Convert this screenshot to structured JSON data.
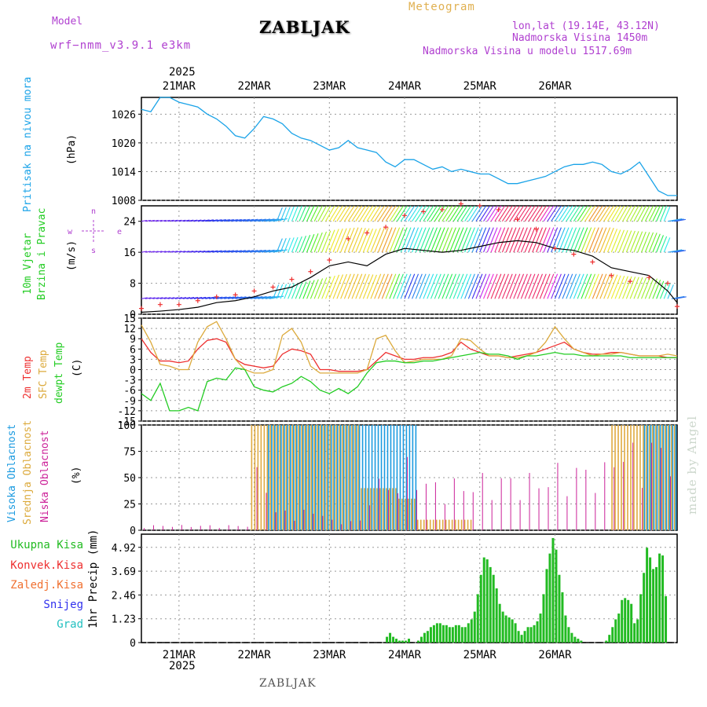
{
  "header": {
    "model_label": "Model",
    "model_name": "wrf−nmm_v3.9.1 e3km",
    "station": "ZABLJAK",
    "product": "Meteogram",
    "coords": "lon,lat (19.14E, 43.12N)",
    "elevation": "Nadmorska Visina 1450m",
    "model_elevation": "Nadmorska Visina u modelu 1517.69m",
    "year": "2025",
    "footer_station": "ZABLJAK",
    "watermark": "made by Angel"
  },
  "colors": {
    "pressure": "#1aa3e8",
    "temp": "#ee3030",
    "sfc_temp": "#dcaa3c",
    "dew": "#22cc22",
    "high_cloud": "#1a9ae0",
    "mid_cloud": "#e0aa40",
    "low_cloud": "#cc2299",
    "precip": "#22bb22",
    "wind_axis": "#b040d0"
  },
  "panel_labels": {
    "pressure": [
      "Pritisak na nivou mora",
      "(hPa)"
    ],
    "wind": [
      "10m Vjetar",
      "Brzina i Pravac",
      "(m/s)"
    ],
    "temp": [
      "2m Temp",
      "SFC Temp",
      "dewpt Temp",
      "(C)"
    ],
    "cloud": [
      "Visoka Oblacnost",
      "Srednja Oblacnost",
      "Niska Oblacnost",
      "(%)"
    ],
    "precip_legend": [
      "Ukupna Kisa",
      "Konvek.Kisa",
      "Zaledj.Kisa",
      "Snijeg",
      "Grad"
    ],
    "precip_axis": "1hr Precip (mm)",
    "compass": {
      "w": "w",
      "e": "e",
      "n": "n",
      "s": "s"
    }
  },
  "chart_data": [
    {
      "type": "line",
      "title": "Pritisak na nivou mora",
      "ylabel": "(hPa)",
      "x": [
        0,
        3,
        6,
        9,
        12,
        15,
        18,
        21,
        24,
        27,
        30,
        33,
        36,
        39,
        42,
        45,
        48,
        51,
        54,
        57,
        60,
        63,
        66,
        69,
        72,
        75,
        78,
        81,
        84,
        87,
        90,
        93,
        96,
        99,
        102,
        105,
        108,
        111,
        114,
        117,
        120,
        123,
        126,
        129,
        132,
        135,
        138,
        141,
        144,
        147,
        150,
        153,
        156,
        159,
        162,
        165,
        168,
        171
      ],
      "values": [
        1027,
        1026.5,
        1029.5,
        1029.5,
        1028.5,
        1028,
        1027.5,
        1026,
        1025,
        1023.5,
        1021.5,
        1021,
        1023,
        1025.5,
        1025,
        1024,
        1022,
        1021,
        1020.5,
        1019.5,
        1018.5,
        1019,
        1020.5,
        1019,
        1018.5,
        1018,
        1016,
        1015,
        1016.5,
        1016.5,
        1015.5,
        1014.5,
        1015,
        1014,
        1014.5,
        1014,
        1013.5,
        1013.5,
        1012.5,
        1011.5,
        1011.5,
        1012,
        1012.5,
        1013,
        1014,
        1015,
        1015.5,
        1015.5,
        1016,
        1015.5,
        1014,
        1013.5,
        1014.5,
        1016,
        1013,
        1010,
        1009,
        1009
      ],
      "ylim": [
        1008,
        1029.5
      ],
      "yticks": [
        "1008",
        "1014",
        "1020",
        "1026"
      ]
    },
    {
      "type": "line",
      "title": "10m Vjetar Brzina i Pravac",
      "ylabel": "(m/s)",
      "x": [
        0,
        6,
        12,
        18,
        24,
        30,
        36,
        42,
        48,
        54,
        60,
        66,
        72,
        78,
        84,
        90,
        96,
        102,
        108,
        114,
        120,
        126,
        132,
        138,
        144,
        150,
        156,
        162,
        168,
        171
      ],
      "speed": [
        0.5,
        0.8,
        1.2,
        1.8,
        3,
        3.5,
        4.5,
        6,
        7,
        9.5,
        12.5,
        13.5,
        12.5,
        15.5,
        17,
        16.5,
        16,
        16.5,
        17.5,
        18.5,
        19,
        18.5,
        17,
        16.5,
        15,
        12,
        11,
        10,
        6,
        3
      ],
      "gust": [
        1.5,
        2.5,
        2.5,
        3.5,
        4.5,
        5,
        6,
        7,
        9,
        11,
        14,
        19.5,
        21,
        22.5,
        25.5,
        26.5,
        27,
        28.5,
        28,
        27,
        24.5,
        22,
        17,
        15.5,
        13.5,
        10,
        8.5,
        9.5,
        8,
        2
      ],
      "rows": [
        24,
        16,
        4
      ],
      "ylim": [
        0,
        28
      ],
      "yticks": [
        "0",
        "8",
        "16",
        "24"
      ]
    },
    {
      "type": "line",
      "title": "2m Temp / SFC Temp / dewpt Temp",
      "ylabel": "(C)",
      "x": [
        0,
        3,
        6,
        9,
        12,
        15,
        18,
        21,
        24,
        27,
        30,
        33,
        36,
        39,
        42,
        45,
        48,
        51,
        54,
        57,
        60,
        63,
        66,
        69,
        72,
        75,
        78,
        81,
        84,
        87,
        90,
        93,
        96,
        99,
        102,
        105,
        108,
        111,
        114,
        117,
        120,
        123,
        126,
        129,
        132,
        135,
        138,
        141,
        144,
        147,
        150,
        153,
        156,
        159,
        162,
        165,
        168,
        171
      ],
      "series": [
        {
          "name": "2m Temp",
          "values": [
            9,
            5,
            2.5,
            2.5,
            2,
            2.5,
            6,
            8.5,
            9,
            8,
            3,
            1.5,
            1,
            0.5,
            1,
            4.5,
            6,
            5.5,
            4.5,
            0,
            0,
            -0.5,
            -0.5,
            -0.5,
            0,
            2.5,
            5,
            4,
            3,
            3,
            3.5,
            3.5,
            4,
            5,
            8,
            6,
            5,
            4,
            4,
            3.5,
            4,
            4.5,
            5,
            6,
            7,
            8,
            6,
            5,
            4.5,
            4.5,
            5,
            5,
            4.5,
            4,
            4,
            4,
            3.5,
            3.5
          ]
        },
        {
          "name": "SFC Temp",
          "values": [
            13,
            8,
            1.5,
            1,
            0,
            0,
            8,
            12.5,
            14,
            9,
            3,
            0,
            -1,
            -1,
            0,
            10,
            12,
            8,
            1,
            -1,
            -1,
            -1,
            -1,
            -1,
            0,
            9,
            10,
            5.5,
            2,
            2.5,
            3,
            3,
            3,
            4,
            9,
            8.5,
            6,
            4,
            4,
            3.5,
            3.5,
            4,
            5,
            8,
            12.5,
            9,
            6,
            5,
            4,
            4.5,
            4.5,
            5,
            4.5,
            4,
            4,
            4,
            4.5,
            4
          ]
        },
        {
          "name": "dewpt Temp",
          "values": [
            -7,
            -9,
            -4,
            -12,
            -12,
            -11,
            -12,
            -3.5,
            -2.5,
            -3,
            0.5,
            0,
            -5,
            -6,
            -6.5,
            -5,
            -4,
            -2,
            -3.5,
            -6,
            -7,
            -5.5,
            -7,
            -5,
            -1,
            2,
            2.5,
            2.5,
            2,
            2,
            2.5,
            2.5,
            3,
            3.5,
            4,
            4.5,
            5,
            4.5,
            4.5,
            4,
            3,
            4,
            4,
            4.5,
            5,
            4.5,
            4.5,
            4,
            4,
            4,
            4,
            4,
            3.5,
            3.5,
            3.5,
            3.5,
            3.5,
            3.5
          ]
        }
      ],
      "ylim": [
        -15,
        15
      ],
      "yticks": [
        "-15",
        "-12",
        "-9",
        "-6",
        "-3",
        "0",
        "3",
        "6",
        "9",
        "12",
        "15"
      ]
    },
    {
      "type": "bar",
      "title": "Visoka / Srednja / Niska Oblacnost",
      "ylabel": "(%)",
      "note": "hourly bars; high (H), mid (M) and low (L) cloud in percent",
      "segments": [
        {
          "from": 0,
          "to": 35,
          "H": 0,
          "M": 0,
          "L": 5
        },
        {
          "from": 35,
          "to": 40,
          "H": 0,
          "M": 100,
          "L": 60
        },
        {
          "from": 40,
          "to": 60,
          "H": 100,
          "M": 100,
          "L": 20
        },
        {
          "from": 60,
          "to": 70,
          "H": 100,
          "M": 100,
          "L": 10
        },
        {
          "from": 70,
          "to": 82,
          "H": 100,
          "M": 40,
          "L": 50
        },
        {
          "from": 82,
          "to": 88,
          "H": 100,
          "M": 30,
          "L": 70
        },
        {
          "from": 88,
          "to": 106,
          "H": 0,
          "M": 10,
          "L": 50
        },
        {
          "from": 106,
          "to": 130,
          "H": 0,
          "M": 0,
          "L": 55
        },
        {
          "from": 130,
          "to": 150,
          "H": 0,
          "M": 0,
          "L": 65
        },
        {
          "from": 150,
          "to": 160,
          "H": 0,
          "M": 100,
          "L": 85
        },
        {
          "from": 160,
          "to": 171,
          "H": 100,
          "M": 100,
          "L": 90
        }
      ],
      "ylim": [
        0,
        100
      ],
      "yticks": [
        "0",
        "25",
        "50",
        "75",
        "100"
      ]
    },
    {
      "type": "bar",
      "title": "1hr Precip (mm)",
      "ylabel": "1hr Precip (mm)",
      "x_start_hour": 78,
      "values": [
        0.3,
        0.5,
        0.3,
        0.2,
        0.1,
        0.1,
        0.1,
        0.2,
        0,
        0,
        0.1,
        0.3,
        0.5,
        0.6,
        0.8,
        0.9,
        1.0,
        1.0,
        0.9,
        0.9,
        0.8,
        0.8,
        0.9,
        0.9,
        0.8,
        0.8,
        1.0,
        1.2,
        1.6,
        2.5,
        3.5,
        4.4,
        4.3,
        3.9,
        3.5,
        2.8,
        2.0,
        1.6,
        1.4,
        1.3,
        1.2,
        1.0,
        0.6,
        0.4,
        0.6,
        0.8,
        0.8,
        0.9,
        1.1,
        1.5,
        2.5,
        3.8,
        4.6,
        5.4,
        4.8,
        3.5,
        2.6,
        1.4,
        0.8,
        0.5,
        0.3,
        0.2,
        0.1,
        0,
        0,
        0,
        0,
        0,
        0,
        0,
        0.1,
        0.4,
        0.8,
        1.2,
        1.5,
        2.2,
        2.3,
        2.2,
        2.0,
        1.0,
        1.2,
        2.5,
        3.6,
        4.9,
        4.4,
        3.8,
        3.9,
        4.6,
        4.5,
        2.4
      ],
      "ylim": [
        0,
        5.6
      ],
      "yticks": [
        "0",
        "1.23",
        "2.46",
        "3.69",
        "4.92"
      ]
    }
  ],
  "time_axis": {
    "start_hour_offset": -12,
    "total_hours": 171,
    "day_labels": [
      "21MAR",
      "22MAR",
      "23MAR",
      "24MAR",
      "25MAR",
      "26MAR"
    ],
    "year_label": "2025"
  }
}
